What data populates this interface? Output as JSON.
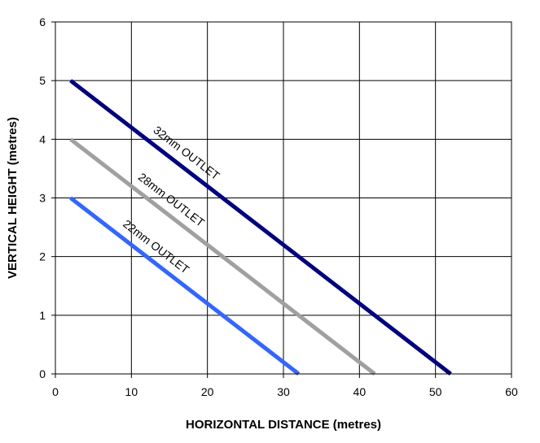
{
  "chart_data": {
    "type": "line",
    "title": "",
    "xlabel": "HORIZONTAL DISTANCE (metres)",
    "ylabel": "VERTICAL HEIGHT (metres)",
    "xlim": [
      0,
      60
    ],
    "ylim": [
      0,
      6
    ],
    "xticks": [
      0,
      10,
      20,
      30,
      40,
      50,
      60
    ],
    "yticks": [
      0,
      1,
      2,
      3,
      4,
      5,
      6
    ],
    "grid": true,
    "legend": "none",
    "series": [
      {
        "name": "32mm OUTLET",
        "color": "#000080",
        "x": [
          2,
          52
        ],
        "y": [
          5,
          0
        ]
      },
      {
        "name": "28mm OUTLET",
        "color": "#A0A0A0",
        "x": [
          2,
          42
        ],
        "y": [
          4,
          0
        ]
      },
      {
        "name": "22mm OUTLET",
        "color": "#3366FF",
        "x": [
          2,
          32
        ],
        "y": [
          3,
          0
        ]
      }
    ]
  }
}
